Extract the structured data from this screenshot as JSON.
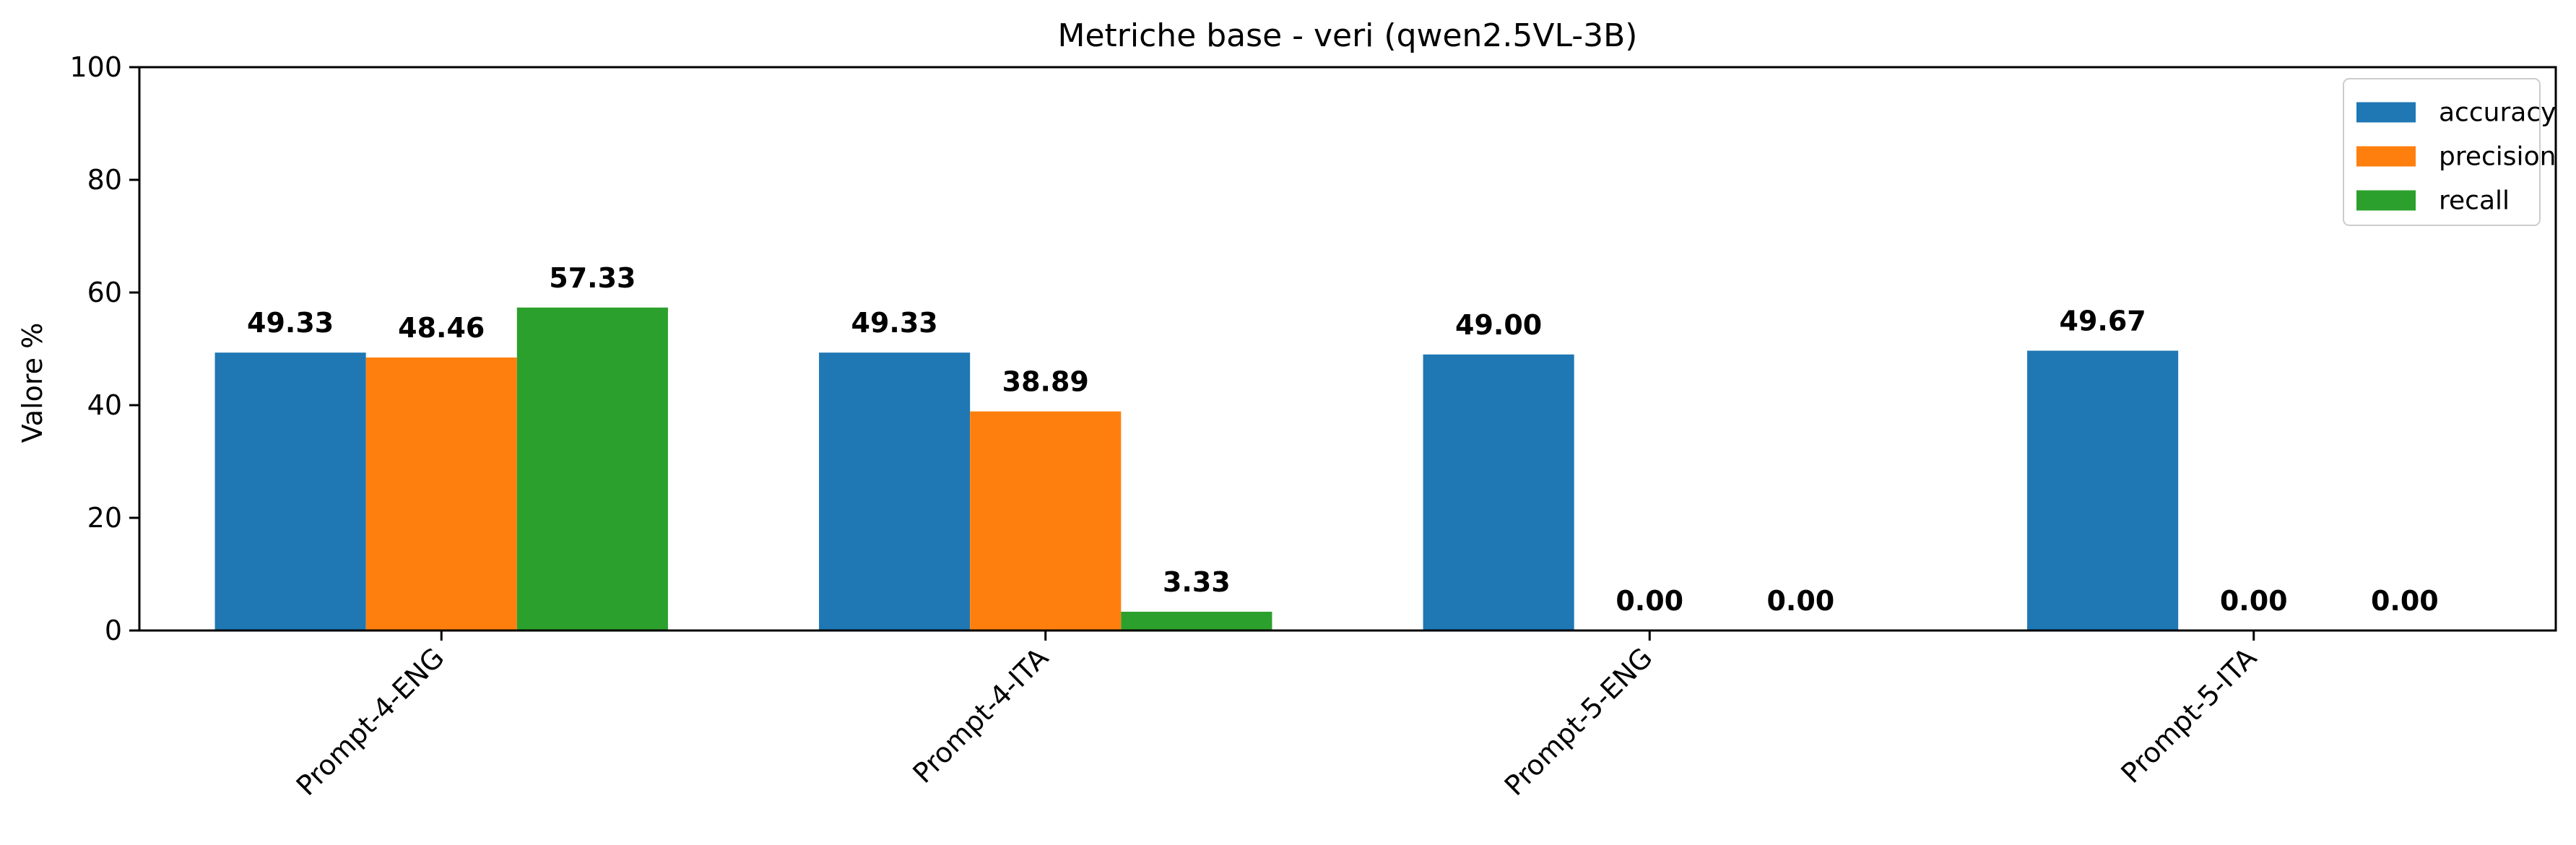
{
  "chart_data": {
    "type": "bar",
    "title": "Metriche base - veri (qwen2.5VL-3B)",
    "xlabel": "",
    "ylabel": "Valore %",
    "ylim": [
      0,
      100
    ],
    "yticks": [
      0,
      20,
      40,
      60,
      80,
      100
    ],
    "categories": [
      "Prompt-4-ENG",
      "Prompt-4-ITA",
      "Prompt-5-ENG",
      "Prompt-5-ITA"
    ],
    "series": [
      {
        "name": "accuracy",
        "color": "#1f77b4",
        "values": [
          49.33,
          49.33,
          49.0,
          49.67
        ],
        "labels": [
          "49.33",
          "49.33",
          "49.00",
          "49.67"
        ]
      },
      {
        "name": "precision",
        "color": "#ff7f0e",
        "values": [
          48.46,
          38.89,
          0.0,
          0.0
        ],
        "labels": [
          "48.46",
          "38.89",
          "0.00",
          "0.00"
        ]
      },
      {
        "name": "recall",
        "color": "#2ca02c",
        "values": [
          57.33,
          3.33,
          0.0,
          0.0
        ],
        "labels": [
          "57.33",
          "3.33",
          "0.00",
          "0.00"
        ]
      }
    ],
    "grid": false,
    "legend_position": "top-right"
  }
}
